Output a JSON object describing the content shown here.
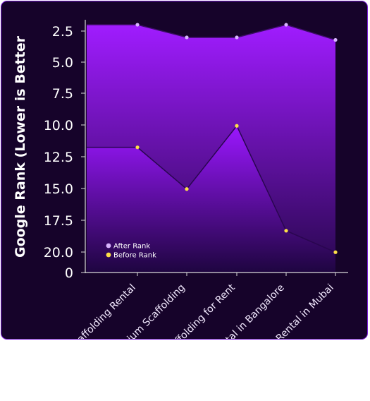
{
  "chart_data": {
    "type": "area",
    "ylabel": "Google Rank (Lower is Better",
    "categories": [
      "Scaffolding Rental",
      "Premium Scaffolding",
      "Scaffolding for Rent",
      "Rental in Bangalore",
      "Rental in Mubai"
    ],
    "y_ticks": [
      "2.5",
      "5.0",
      "7.5",
      "10.0",
      "12.5",
      "15.0",
      "17.5",
      "20.0",
      "0"
    ],
    "y_reversed": true,
    "series": [
      {
        "name": "After Rank",
        "values": [
          2,
          3,
          3,
          2,
          3.2
        ],
        "color": "#d8b4fe"
      },
      {
        "name": "Before Rank",
        "values": [
          11.7,
          15,
          10,
          18.3,
          20
        ],
        "color": "#fde047"
      }
    ],
    "legend_position": "bottom-left",
    "colors": {
      "background": "#16032a",
      "area_top": "#9b17ff",
      "area_bottom": "#2a0650",
      "border": "#7a1fd6",
      "axis": "#d9d9d9"
    }
  }
}
